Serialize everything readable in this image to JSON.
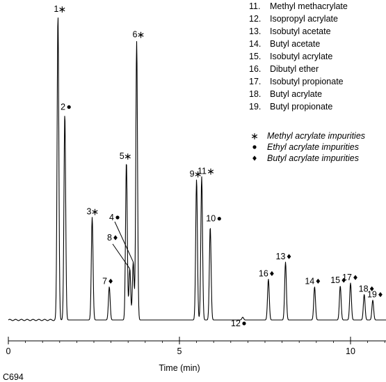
{
  "chart_data": {
    "type": "line",
    "title": "",
    "xlabel": "Time (min)",
    "ylabel": "",
    "xlim": [
      0,
      11.2
    ],
    "x_ticks": [
      {
        "value": 0,
        "label": "0"
      },
      {
        "value": 5,
        "label": "5"
      },
      {
        "value": 10,
        "label": "10"
      }
    ],
    "figure_code": "C694",
    "legend": {
      "compounds": [
        {
          "num": "11.",
          "name": "Methyl methacrylate"
        },
        {
          "num": "12.",
          "name": "Isopropyl acrylate"
        },
        {
          "num": "13.",
          "name": "Isobutyl acetate"
        },
        {
          "num": "14.",
          "name": "Butyl acetate"
        },
        {
          "num": "15.",
          "name": "Isobutyl acrylate"
        },
        {
          "num": "16.",
          "name": "Dibutyl ether"
        },
        {
          "num": "17.",
          "name": "Isobutyl propionate"
        },
        {
          "num": "18.",
          "name": "Butyl acrylate"
        },
        {
          "num": "19.",
          "name": "Butyl propionate"
        }
      ],
      "markers": [
        {
          "symbol": "star",
          "text": "Methyl acrylate impurities"
        },
        {
          "symbol": "dot",
          "text": "Ethyl acrylate impurities"
        },
        {
          "symbol": "diamond",
          "text": "Butyl acrylate impurities"
        }
      ]
    },
    "peaks": [
      {
        "label": "1",
        "marker": "star",
        "t": 1.45,
        "height": 1.0
      },
      {
        "label": "2",
        "marker": "dot",
        "t": 1.65,
        "height": 0.676
      },
      {
        "label": "3",
        "marker": "star",
        "t": 2.45,
        "height": 0.337
      },
      {
        "label": "7",
        "marker": "diamond",
        "t": 2.95,
        "height": 0.109
      },
      {
        "label": "5",
        "marker": "star",
        "t": 3.45,
        "height": 0.52
      },
      {
        "label": "8",
        "marker": "diamond",
        "t": 3.55,
        "height": 0.168
      },
      {
        "label": "4",
        "marker": "dot",
        "t": 3.65,
        "height": 0.19
      },
      {
        "label": "6",
        "marker": "star",
        "t": 3.75,
        "height": 0.914
      },
      {
        "label": "9",
        "marker": "star",
        "t": 5.5,
        "height": 0.461
      },
      {
        "label": "11",
        "marker": "star",
        "t": 5.65,
        "height": 0.47
      },
      {
        "label": "10",
        "marker": "dot",
        "t": 5.9,
        "height": 0.305
      },
      {
        "label": "12",
        "marker": "dot",
        "t": 6.85,
        "height": 0.009
      },
      {
        "label": "16",
        "marker": "diamond",
        "t": 7.6,
        "height": 0.134
      },
      {
        "label": "13",
        "marker": "diamond",
        "t": 8.1,
        "height": 0.19
      },
      {
        "label": "14",
        "marker": "diamond",
        "t": 8.95,
        "height": 0.109
      },
      {
        "label": "15",
        "marker": "diamond",
        "t": 9.7,
        "height": 0.112
      },
      {
        "label": "17",
        "marker": "diamond",
        "t": 10.0,
        "height": 0.121
      },
      {
        "label": "18",
        "marker": "diamond",
        "t": 10.4,
        "height": 0.084
      },
      {
        "label": "19",
        "marker": "diamond",
        "t": 10.65,
        "height": 0.065
      }
    ]
  }
}
